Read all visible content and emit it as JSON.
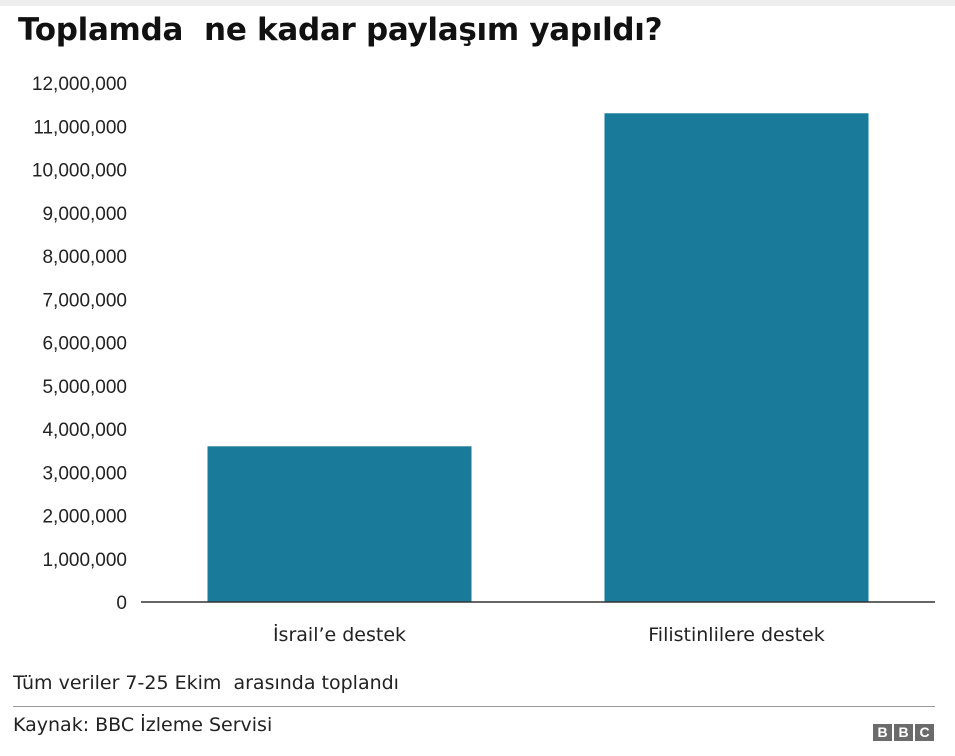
{
  "chart_data": {
    "type": "bar",
    "title": "Toplamda  ne kadar paylaşım yapıldı?",
    "categories": [
      "İsrail’e destek",
      "Filistinlilere destek"
    ],
    "values": [
      3600000,
      11300000
    ],
    "ylim": [
      0,
      12000000
    ],
    "yticks": [
      0,
      1000000,
      2000000,
      3000000,
      4000000,
      5000000,
      6000000,
      7000000,
      8000000,
      9000000,
      10000000,
      11000000,
      12000000
    ],
    "ytick_labels": [
      "0",
      "1,000,000",
      "2,000,000",
      "3,000,000",
      "4,000,000",
      "5,000,000",
      "6,000,000",
      "7,000,000",
      "8,000,000",
      "9,000,000",
      "10,000,000",
      "11,000,000",
      "12,000,000"
    ],
    "bar_color": "#1a7a9a",
    "grid": false,
    "legend": "none"
  },
  "note": "Tüm veriler 7-25 Ekim  arasında toplandı",
  "source": "Kaynak: BBC İzleme Servisi",
  "logo": [
    "B",
    "B",
    "C"
  ]
}
